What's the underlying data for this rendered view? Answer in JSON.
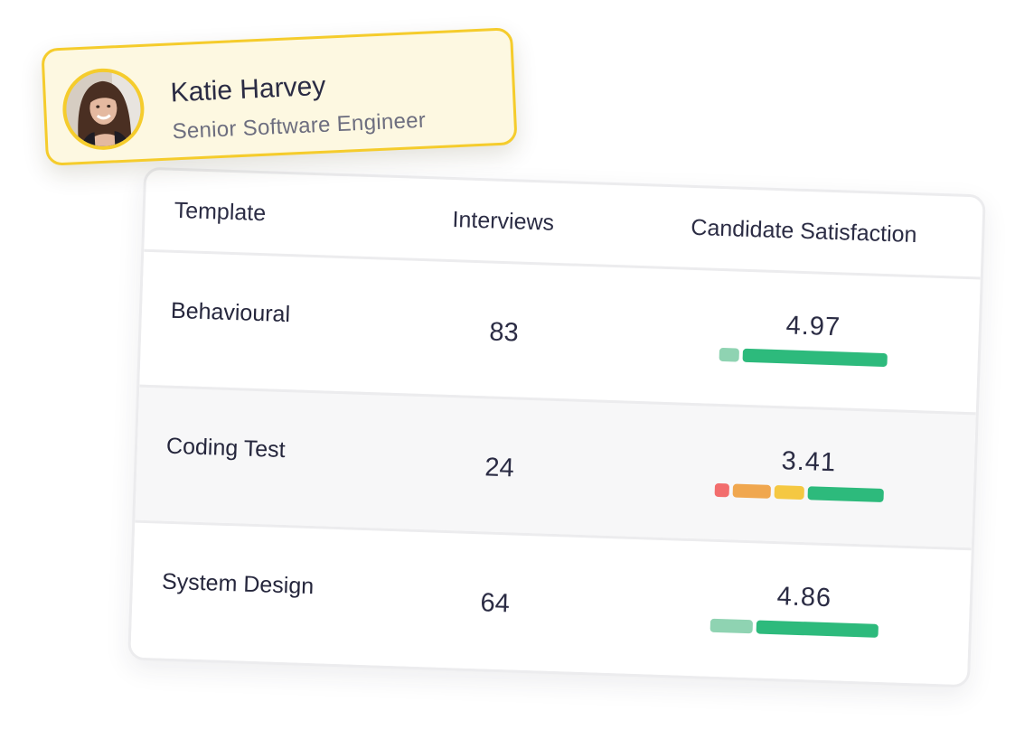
{
  "profile": {
    "name": "Katie Harvey",
    "role": "Senior Software Engineer",
    "accent_color": "#f5cc2c",
    "background_color": "#fdf8e1"
  },
  "table": {
    "headers": {
      "template": "Template",
      "interviews": "Interviews",
      "satisfaction": "Candidate Satisfaction"
    },
    "rows": [
      {
        "template": "Behavioural",
        "interviews": "83",
        "satisfaction": "4.97",
        "rating_segments": [
          {
            "color": "#8fd3b2",
            "share": 0.12
          },
          {
            "color": "#2dba7c",
            "share": 0.88
          }
        ]
      },
      {
        "template": "Coding Test",
        "interviews": "24",
        "satisfaction": "3.41",
        "rating_segments": [
          {
            "color": "#f26d6d",
            "share": 0.09
          },
          {
            "color": "#f0a74f",
            "share": 0.24
          },
          {
            "color": "#f5c842",
            "share": 0.19
          },
          {
            "color": "#2dba7c",
            "share": 0.48
          }
        ]
      },
      {
        "template": "System Design",
        "interviews": "64",
        "satisfaction": "4.86",
        "rating_segments": [
          {
            "color": "#8fd3b2",
            "share": 0.26
          },
          {
            "color": "#2dba7c",
            "share": 0.74
          }
        ]
      }
    ]
  }
}
